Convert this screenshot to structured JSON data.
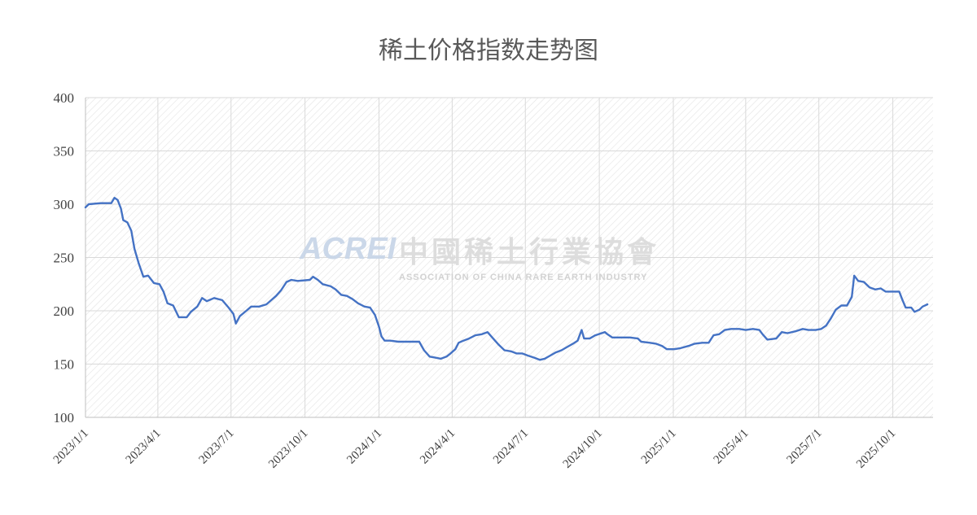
{
  "watermark": {
    "abbr": "ACREI",
    "cn": "中國稀土行業協會",
    "en": "ASSOCIATION OF CHINA RARE EARTH INDUSTRY"
  },
  "chart_data": {
    "type": "line",
    "title": "稀土价格指数走势图",
    "xlabel": "",
    "ylabel": "",
    "ylim": [
      100,
      400
    ],
    "xlim": [
      "2023-01-01",
      "2025-11-20"
    ],
    "yticks": [
      100,
      150,
      200,
      250,
      300,
      350,
      400
    ],
    "xticks": [
      {
        "date": "2023-01-01",
        "label": "2023/1/1"
      },
      {
        "date": "2023-04-01",
        "label": "2023/4/1"
      },
      {
        "date": "2023-07-01",
        "label": "2023/7/1"
      },
      {
        "date": "2023-10-01",
        "label": "2023/10/1"
      },
      {
        "date": "2024-01-01",
        "label": "2024/1/1"
      },
      {
        "date": "2024-04-01",
        "label": "2024/4/1"
      },
      {
        "date": "2024-07-01",
        "label": "2024/7/1"
      },
      {
        "date": "2024-10-01",
        "label": "2024/10/1"
      },
      {
        "date": "2025-01-01",
        "label": "2025/1/1"
      },
      {
        "date": "2025-04-01",
        "label": "2025/4/1"
      },
      {
        "date": "2025-07-01",
        "label": "2025/7/1"
      },
      {
        "date": "2025-10-01",
        "label": "2025/10/1"
      }
    ],
    "grid": true,
    "legend": "none",
    "line_color": "#4472C4",
    "series": [
      {
        "points": [
          [
            "2023-01-01",
            297
          ],
          [
            "2023-01-05",
            300
          ],
          [
            "2023-01-20",
            301
          ],
          [
            "2023-02-02",
            301
          ],
          [
            "2023-02-06",
            306
          ],
          [
            "2023-02-10",
            304
          ],
          [
            "2023-02-14",
            296
          ],
          [
            "2023-02-17",
            285
          ],
          [
            "2023-02-22",
            283
          ],
          [
            "2023-02-27",
            275
          ],
          [
            "2023-03-03",
            258
          ],
          [
            "2023-03-08",
            245
          ],
          [
            "2023-03-14",
            232
          ],
          [
            "2023-03-20",
            233
          ],
          [
            "2023-03-27",
            226
          ],
          [
            "2023-04-03",
            225
          ],
          [
            "2023-04-08",
            218
          ],
          [
            "2023-04-13",
            207
          ],
          [
            "2023-04-20",
            205
          ],
          [
            "2023-04-27",
            194
          ],
          [
            "2023-05-07",
            194
          ],
          [
            "2023-05-12",
            199
          ],
          [
            "2023-05-20",
            204
          ],
          [
            "2023-05-26",
            212
          ],
          [
            "2023-06-01",
            209
          ],
          [
            "2023-06-10",
            212
          ],
          [
            "2023-06-20",
            210
          ],
          [
            "2023-06-28",
            203
          ],
          [
            "2023-07-04",
            197
          ],
          [
            "2023-07-07",
            188
          ],
          [
            "2023-07-12",
            195
          ],
          [
            "2023-07-20",
            200
          ],
          [
            "2023-07-26",
            204
          ],
          [
            "2023-08-05",
            204
          ],
          [
            "2023-08-14",
            206
          ],
          [
            "2023-08-20",
            210
          ],
          [
            "2023-08-26",
            214
          ],
          [
            "2023-09-01",
            219
          ],
          [
            "2023-09-08",
            227
          ],
          [
            "2023-09-14",
            229
          ],
          [
            "2023-09-22",
            228
          ],
          [
            "2023-10-07",
            229
          ],
          [
            "2023-10-11",
            232
          ],
          [
            "2023-10-17",
            229
          ],
          [
            "2023-10-23",
            225
          ],
          [
            "2023-11-02",
            223
          ],
          [
            "2023-11-08",
            220
          ],
          [
            "2023-11-15",
            215
          ],
          [
            "2023-11-22",
            214
          ],
          [
            "2023-11-29",
            211
          ],
          [
            "2023-12-06",
            207
          ],
          [
            "2023-12-14",
            204
          ],
          [
            "2023-12-21",
            203
          ],
          [
            "2023-12-27",
            196
          ],
          [
            "2024-01-01",
            185
          ],
          [
            "2024-01-04",
            176
          ],
          [
            "2024-01-08",
            172
          ],
          [
            "2024-01-15",
            172
          ],
          [
            "2024-01-25",
            171
          ],
          [
            "2024-02-06",
            171
          ],
          [
            "2024-02-20",
            171
          ],
          [
            "2024-02-26",
            163
          ],
          [
            "2024-03-04",
            157
          ],
          [
            "2024-03-11",
            156
          ],
          [
            "2024-03-18",
            155
          ],
          [
            "2024-03-25",
            157
          ],
          [
            "2024-03-30",
            160
          ],
          [
            "2024-04-05",
            164
          ],
          [
            "2024-04-09",
            170
          ],
          [
            "2024-04-15",
            172
          ],
          [
            "2024-04-22",
            174
          ],
          [
            "2024-04-30",
            177
          ],
          [
            "2024-05-08",
            178
          ],
          [
            "2024-05-15",
            180
          ],
          [
            "2024-05-22",
            174
          ],
          [
            "2024-05-29",
            168
          ],
          [
            "2024-06-05",
            163
          ],
          [
            "2024-06-13",
            162
          ],
          [
            "2024-06-20",
            160
          ],
          [
            "2024-06-27",
            160
          ],
          [
            "2024-07-04",
            158
          ],
          [
            "2024-07-12",
            156
          ],
          [
            "2024-07-19",
            154
          ],
          [
            "2024-07-25",
            155
          ],
          [
            "2024-08-01",
            158
          ],
          [
            "2024-08-08",
            161
          ],
          [
            "2024-08-15",
            163
          ],
          [
            "2024-08-22",
            166
          ],
          [
            "2024-08-29",
            169
          ],
          [
            "2024-09-04",
            172
          ],
          [
            "2024-09-09",
            182
          ],
          [
            "2024-09-12",
            174
          ],
          [
            "2024-09-19",
            174
          ],
          [
            "2024-09-26",
            177
          ],
          [
            "2024-10-08",
            180
          ],
          [
            "2024-10-11",
            178
          ],
          [
            "2024-10-17",
            175
          ],
          [
            "2024-10-28",
            175
          ],
          [
            "2024-11-08",
            175
          ],
          [
            "2024-11-18",
            174
          ],
          [
            "2024-11-22",
            171
          ],
          [
            "2024-12-03",
            170
          ],
          [
            "2024-12-11",
            169
          ],
          [
            "2024-12-18",
            167
          ],
          [
            "2024-12-24",
            164
          ],
          [
            "2025-01-02",
            164
          ],
          [
            "2025-01-10",
            165
          ],
          [
            "2025-01-20",
            167
          ],
          [
            "2025-01-27",
            169
          ],
          [
            "2025-02-06",
            170
          ],
          [
            "2025-02-14",
            170
          ],
          [
            "2025-02-20",
            177
          ],
          [
            "2025-02-27",
            178
          ],
          [
            "2025-03-06",
            182
          ],
          [
            "2025-03-14",
            183
          ],
          [
            "2025-03-24",
            183
          ],
          [
            "2025-04-01",
            182
          ],
          [
            "2025-04-10",
            183
          ],
          [
            "2025-04-18",
            182
          ],
          [
            "2025-04-22",
            178
          ],
          [
            "2025-04-28",
            173
          ],
          [
            "2025-05-09",
            174
          ],
          [
            "2025-05-16",
            180
          ],
          [
            "2025-05-23",
            179
          ],
          [
            "2025-06-03",
            181
          ],
          [
            "2025-06-11",
            183
          ],
          [
            "2025-06-18",
            182
          ],
          [
            "2025-06-27",
            182
          ],
          [
            "2025-07-04",
            183
          ],
          [
            "2025-07-10",
            186
          ],
          [
            "2025-07-16",
            193
          ],
          [
            "2025-07-22",
            201
          ],
          [
            "2025-07-29",
            205
          ],
          [
            "2025-08-05",
            205
          ],
          [
            "2025-08-11",
            213
          ],
          [
            "2025-08-14",
            233
          ],
          [
            "2025-08-19",
            228
          ],
          [
            "2025-08-26",
            227
          ],
          [
            "2025-09-02",
            222
          ],
          [
            "2025-09-09",
            220
          ],
          [
            "2025-09-16",
            221
          ],
          [
            "2025-09-22",
            218
          ],
          [
            "2025-10-09",
            218
          ],
          [
            "2025-10-13",
            210
          ],
          [
            "2025-10-17",
            203
          ],
          [
            "2025-10-24",
            203
          ],
          [
            "2025-10-28",
            199
          ],
          [
            "2025-11-03",
            201
          ],
          [
            "2025-11-07",
            204
          ],
          [
            "2025-11-13",
            206
          ]
        ]
      }
    ]
  }
}
